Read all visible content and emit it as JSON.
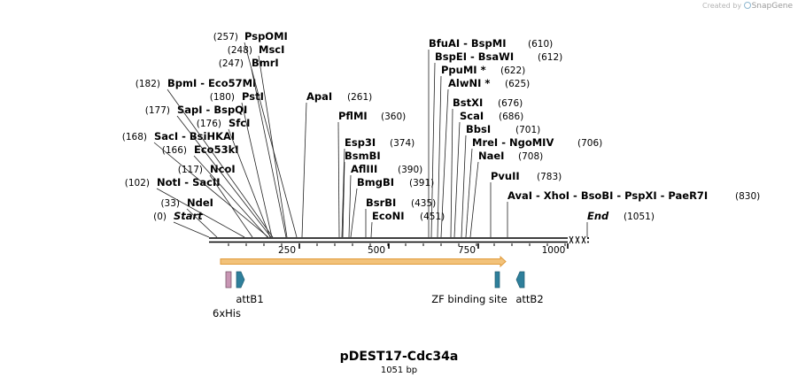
{
  "watermark": {
    "prefix": "Created by",
    "brand": "SnapGene"
  },
  "plasmid": {
    "name": "pDEST17-Cdc34a",
    "length_label": "1051 bp"
  },
  "ruler": {
    "ticks": [
      "250",
      "500",
      "750",
      "1000"
    ]
  },
  "sites": [
    {
      "pos": "(0)",
      "label": "Start",
      "italic": true,
      "enzymes": [
        "Start"
      ]
    },
    {
      "pos": "(33)",
      "label": "NdeI",
      "enzymes": [
        "NdeI"
      ]
    },
    {
      "pos": "(102)",
      "label": "NotI  - SacII",
      "enzymes": [
        "NotI",
        "SacII"
      ]
    },
    {
      "pos": "(117)",
      "label": "NcoI",
      "enzymes": [
        "NcoI"
      ]
    },
    {
      "pos": "(166)",
      "label": "Eco53kI",
      "enzymes": [
        "Eco53kI"
      ]
    },
    {
      "pos": "(168)",
      "label": "SacI  - BsiHKAI",
      "enzymes": [
        "SacI",
        "BsiHKAI"
      ]
    },
    {
      "pos": "(176)",
      "label": "SfcI",
      "enzymes": [
        "SfcI"
      ]
    },
    {
      "pos": "(177)",
      "label": "SapI  - BspQI",
      "enzymes": [
        "SapI",
        "BspQI"
      ]
    },
    {
      "pos": "(180)",
      "label": "PstI",
      "enzymes": [
        "PstI"
      ]
    },
    {
      "pos": "(182)",
      "label": "BpmI  - Eco57MI",
      "enzymes": [
        "BpmI",
        "Eco57MI"
      ]
    },
    {
      "pos": "(247)",
      "label": "BmrI",
      "enzymes": [
        "BmrI"
      ]
    },
    {
      "pos": "(248)",
      "label": "MscI",
      "enzymes": [
        "MscI"
      ]
    },
    {
      "pos": "(257)",
      "label": "PspOMI",
      "enzymes": [
        "PspOMI"
      ]
    },
    {
      "pos": "(261)",
      "label": "ApaI",
      "enzymes": [
        "ApaI"
      ]
    },
    {
      "pos": "(360)",
      "label": "PflMI",
      "enzymes": [
        "PflMI"
      ]
    },
    {
      "pos": "(374)",
      "label": "Esp3I",
      "enzymes": [
        "Esp3I"
      ]
    },
    {
      "pos": "",
      "label": "BsmBI",
      "enzymes": [
        "BsmBI"
      ]
    },
    {
      "pos": "(390)",
      "label": "AflIII",
      "enzymes": [
        "AflIII"
      ]
    },
    {
      "pos": "(391)",
      "label": "BmgBI",
      "enzymes": [
        "BmgBI"
      ]
    },
    {
      "pos": "(435)",
      "label": "BsrBI",
      "enzymes": [
        "BsrBI"
      ]
    },
    {
      "pos": "(451)",
      "label": "EcoNI",
      "enzymes": [
        "EcoNI"
      ]
    },
    {
      "pos": "(610)",
      "label": "BfuAI  - BspMI",
      "enzymes": [
        "BfuAI",
        "BspMI"
      ]
    },
    {
      "pos": "(612)",
      "label": "BspEI  - BsaWI",
      "enzymes": [
        "BspEI",
        "BsaWI"
      ]
    },
    {
      "pos": "(622)",
      "label": "PpuMI *",
      "enzymes": [
        "PpuMI *"
      ]
    },
    {
      "pos": "(625)",
      "label": "AlwNI *",
      "enzymes": [
        "AlwNI *"
      ]
    },
    {
      "pos": "(676)",
      "label": "BstXI",
      "enzymes": [
        "BstXI"
      ]
    },
    {
      "pos": "(686)",
      "label": "ScaI",
      "enzymes": [
        "ScaI"
      ]
    },
    {
      "pos": "(701)",
      "label": "BbsI",
      "enzymes": [
        "BbsI"
      ]
    },
    {
      "pos": "(706)",
      "label": "MreI  - NgoMIV",
      "enzymes": [
        "MreI",
        "NgoMIV"
      ]
    },
    {
      "pos": "(708)",
      "label": "NaeI",
      "enzymes": [
        "NaeI"
      ]
    },
    {
      "pos": "(783)",
      "label": "PvuII",
      "enzymes": [
        "PvuII"
      ]
    },
    {
      "pos": "(830)",
      "label": "AvaI  - XhoI  - BsoBI  - PspXI  - PaeR7I",
      "enzymes": [
        "AvaI",
        "XhoI",
        "BsoBI",
        "PspXI",
        "PaeR7I"
      ]
    },
    {
      "pos": "(1051)",
      "label": "End",
      "italic": true,
      "enzymes": [
        "End"
      ]
    }
  ],
  "features": [
    {
      "name": "6xHis",
      "color": "#c896b4"
    },
    {
      "name": "attB1",
      "color": "#2e7f9b"
    },
    {
      "name": "ZF binding site",
      "color": "#2e7f9b"
    },
    {
      "name": "attB2",
      "color": "#2e7f9b"
    }
  ],
  "orf": {
    "color": "#f2c27a",
    "outline": "#e09a3a"
  }
}
